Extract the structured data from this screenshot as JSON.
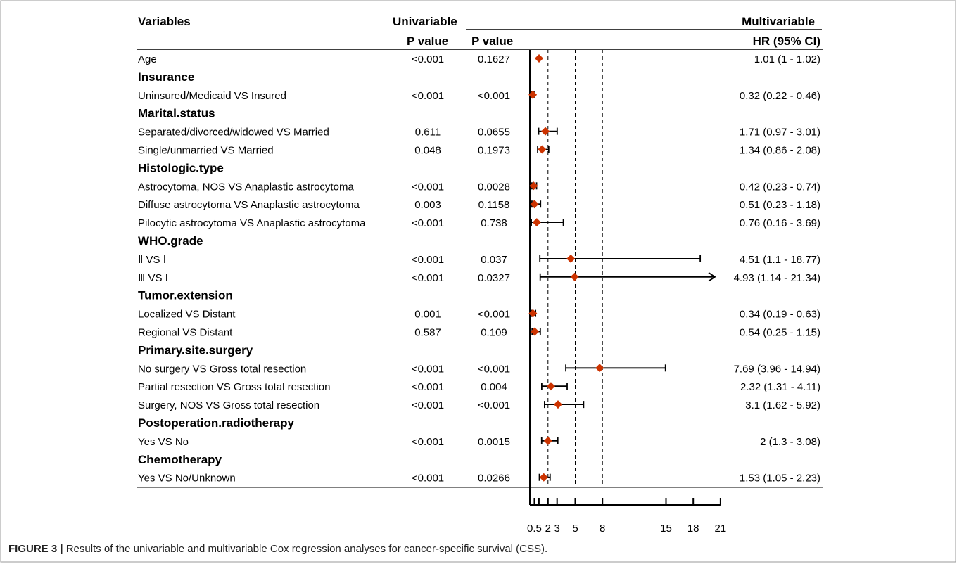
{
  "header": {
    "variables": "Variables",
    "univariable": "Univariable",
    "multivariable": "Multivariable",
    "uni_p": "P value",
    "multi_p": "P value",
    "hr": "HR (95% CI)"
  },
  "caption": {
    "label": "FIGURE 3 |",
    "text": " Results of the univariable and multivariable Cox regression analyses for cancer-specific survival (CSS)."
  },
  "colors": {
    "marker": "#cc3300",
    "line": "#000000",
    "border": "#999999"
  },
  "chart_data": {
    "type": "forest",
    "x_ticks": [
      {
        "value": 0.5,
        "label": "0.5"
      },
      {
        "value": 1,
        "label": ""
      },
      {
        "value": 2,
        "label": "2"
      },
      {
        "value": 3,
        "label": "3"
      },
      {
        "value": 5,
        "label": "5"
      },
      {
        "value": 8,
        "label": "8"
      },
      {
        "value": 15,
        "label": "15"
      },
      {
        "value": 18,
        "label": "18"
      },
      {
        "value": 21,
        "label": "21"
      }
    ],
    "reference_lines": [
      2,
      5,
      8
    ],
    "xlim": [
      0,
      21
    ],
    "rows": [
      {
        "kind": "item",
        "label": "Age",
        "uni_p": "<0.001",
        "multi_p": "0.1627",
        "hr": 1.01,
        "lo": 1,
        "hi": 1.02,
        "hr_text": "1.01 (1 - 1.02)"
      },
      {
        "kind": "group",
        "label": "Insurance"
      },
      {
        "kind": "item",
        "label": "Uninsured/Medicaid VS Insured",
        "uni_p": "<0.001",
        "multi_p": "<0.001",
        "hr": 0.32,
        "lo": 0.22,
        "hi": 0.46,
        "hr_text": "0.32 (0.22 - 0.46)"
      },
      {
        "kind": "group",
        "label": "Marital.status"
      },
      {
        "kind": "item",
        "label": "Separated/divorced/widowed VS Married",
        "uni_p": "0.611",
        "multi_p": "0.0655",
        "hr": 1.71,
        "lo": 0.97,
        "hi": 3.01,
        "hr_text": "1.71 (0.97 - 3.01)"
      },
      {
        "kind": "item",
        "label": "Single/unmarried VS Married",
        "uni_p": "0.048",
        "multi_p": "0.1973",
        "hr": 1.34,
        "lo": 0.86,
        "hi": 2.08,
        "hr_text": "1.34 (0.86 - 2.08)"
      },
      {
        "kind": "group",
        "label": "Histologic.type"
      },
      {
        "kind": "item",
        "label": "Astrocytoma, NOS VS Anaplastic astrocytoma",
        "uni_p": "<0.001",
        "multi_p": "0.0028",
        "hr": 0.42,
        "lo": 0.23,
        "hi": 0.74,
        "hr_text": "0.42 (0.23 - 0.74)"
      },
      {
        "kind": "item",
        "label": "Diffuse astrocytoma  VS Anaplastic astrocytoma",
        "uni_p": "0.003",
        "multi_p": "0.1158",
        "hr": 0.51,
        "lo": 0.23,
        "hi": 1.18,
        "hr_text": "0.51 (0.23 - 1.18)"
      },
      {
        "kind": "item",
        "label": "Pilocytic astrocytoma VS Anaplastic astrocytoma",
        "uni_p": "<0.001",
        "multi_p": "0.738",
        "hr": 0.76,
        "lo": 0.16,
        "hi": 3.69,
        "hr_text": "0.76 (0.16 - 3.69)"
      },
      {
        "kind": "group",
        "label": "WHO.grade"
      },
      {
        "kind": "item",
        "label": "Ⅱ VS Ⅰ",
        "uni_p": "<0.001",
        "multi_p": "0.037",
        "hr": 4.51,
        "lo": 1.1,
        "hi": 18.77,
        "hr_text": "4.51 (1.1 - 18.77)"
      },
      {
        "kind": "item",
        "label": "Ⅲ VS Ⅰ",
        "uni_p": "<0.001",
        "multi_p": "0.0327",
        "hr": 4.93,
        "lo": 1.14,
        "hi": 21.34,
        "hr_text": "4.93 (1.14 - 21.34)",
        "arrow": true
      },
      {
        "kind": "group",
        "label": "Tumor.extension"
      },
      {
        "kind": "item",
        "label": "Localized VS Distant",
        "uni_p": "0.001",
        "multi_p": "<0.001",
        "hr": 0.34,
        "lo": 0.19,
        "hi": 0.63,
        "hr_text": "0.34 (0.19 - 0.63)"
      },
      {
        "kind": "item",
        "label": "Regional VS Distant",
        "uni_p": "0.587",
        "multi_p": "0.109",
        "hr": 0.54,
        "lo": 0.25,
        "hi": 1.15,
        "hr_text": "0.54 (0.25 - 1.15)"
      },
      {
        "kind": "group",
        "label": "Primary.site.surgery"
      },
      {
        "kind": "item",
        "label": "No surgery VS Gross total resection",
        "uni_p": "<0.001",
        "multi_p": "<0.001",
        "hr": 7.69,
        "lo": 3.96,
        "hi": 14.94,
        "hr_text": "7.69 (3.96 - 14.94)"
      },
      {
        "kind": "item",
        "label": "Partial resection VS Gross total resection",
        "uni_p": "<0.001",
        "multi_p": "0.004",
        "hr": 2.32,
        "lo": 1.31,
        "hi": 4.11,
        "hr_text": "2.32 (1.31 - 4.11)"
      },
      {
        "kind": "item",
        "label": "Surgery, NOS VS Gross total resection",
        "uni_p": "<0.001",
        "multi_p": "<0.001",
        "hr": 3.1,
        "lo": 1.62,
        "hi": 5.92,
        "hr_text": "3.1 (1.62 - 5.92)"
      },
      {
        "kind": "group",
        "label": "Postoperation.radiotherapy"
      },
      {
        "kind": "item",
        "label": "Yes VS No",
        "uni_p": "<0.001",
        "multi_p": "0.0015",
        "hr": 2,
        "lo": 1.3,
        "hi": 3.08,
        "hr_text": "2 (1.3 - 3.08)"
      },
      {
        "kind": "group",
        "label": "Chemotherapy"
      },
      {
        "kind": "item",
        "label": "Yes VS No/Unknown",
        "uni_p": "<0.001",
        "multi_p": "0.0266",
        "hr": 1.53,
        "lo": 1.05,
        "hi": 2.23,
        "hr_text": "1.53 (1.05 - 2.23)"
      }
    ]
  }
}
